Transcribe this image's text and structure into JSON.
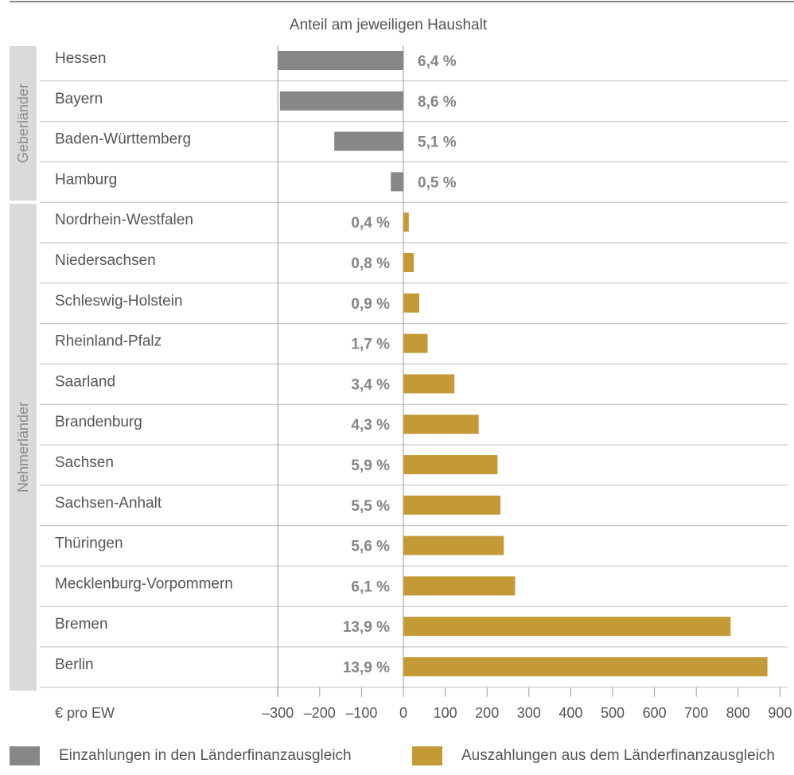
{
  "chart_data": {
    "type": "bar",
    "orientation": "horizontal",
    "title": "Anteil am jeweiligen Haushalt",
    "xlabel": "€ pro EW",
    "xlim": [
      -300,
      900
    ],
    "xticks": [
      -300,
      -200,
      -100,
      0,
      100,
      200,
      300,
      400,
      500,
      600,
      700,
      800,
      900
    ],
    "xtick_labels": [
      "–300",
      "–200",
      "–100",
      "0",
      "100",
      "200",
      "300",
      "400",
      "500",
      "600",
      "700",
      "800",
      "900"
    ],
    "grid": "vertical at -300 and 0",
    "groups": [
      {
        "label": "Geberländer",
        "rows": [
          0,
          3
        ]
      },
      {
        "label": "Nehmerländer",
        "rows": [
          4,
          15
        ]
      }
    ],
    "categories": [
      "Hessen",
      "Bayern",
      "Baden-Württemberg",
      "Hamburg",
      "Nordrhein-Westfalen",
      "Niedersachsen",
      "Schleswig-Holstein",
      "Rheinland-Pfalz",
      "Saarland",
      "Brandenburg",
      "Sachsen",
      "Sachsen-Anhalt",
      "Thüringen",
      "Mecklenburg-Vorpommern",
      "Bremen",
      "Berlin"
    ],
    "values": [
      -300,
      -295,
      -165,
      -30,
      13,
      25,
      38,
      58,
      122,
      180,
      225,
      232,
      240,
      267,
      782,
      870
    ],
    "share_labels": [
      "6,4 %",
      "8,6 %",
      "5,1 %",
      "0,5 %",
      "0,4 %",
      "0,8 %",
      "0,9 %",
      "1,7 %",
      "3,4 %",
      "4,3 %",
      "5,9 %",
      "5,5 %",
      "5,6 %",
      "6,1 %",
      "13,9 %",
      "13,9 %"
    ],
    "series": [
      {
        "name": "Einzahlungen in den Länderfinanzausgleich",
        "color": "#878787"
      },
      {
        "name": "Auszahlungen aus dem Länderfinanzausgleich",
        "color": "#c49a36"
      }
    ],
    "colors": {
      "label_text": "#555555",
      "value_text": "#858585",
      "row_line": "#bdbdbd",
      "group_band": "#dadada"
    },
    "legend": "bottom"
  }
}
